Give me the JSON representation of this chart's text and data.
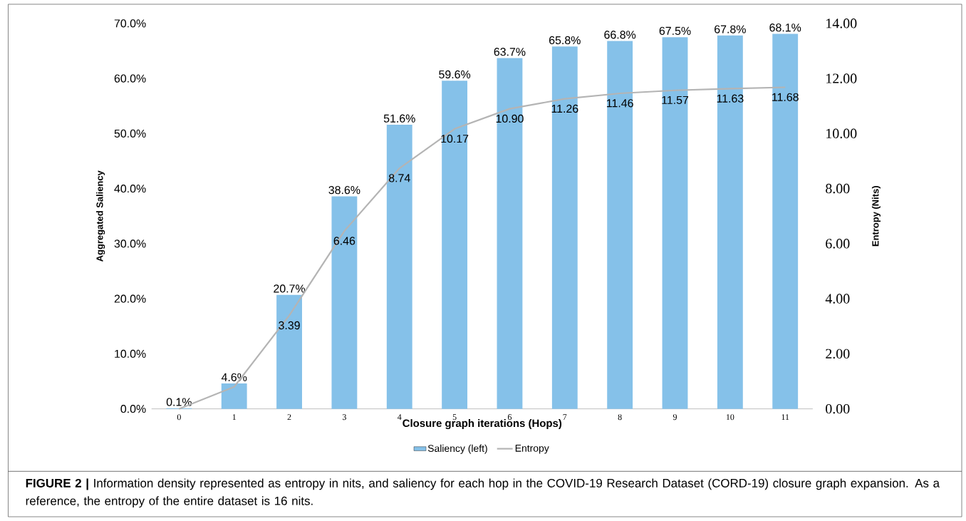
{
  "chart_data": {
    "type": "bar",
    "categories": [
      "0",
      "1",
      "2",
      "3",
      "4",
      "5",
      "6",
      "7",
      "8",
      "9",
      "10",
      "11"
    ],
    "series": [
      {
        "name": "Saliency (left)",
        "color": "#85c1e9",
        "values": [
          0.1,
          4.6,
          20.7,
          38.6,
          51.6,
          59.6,
          63.7,
          65.8,
          66.8,
          67.5,
          67.8,
          68.1
        ],
        "value_labels": [
          "0.1%",
          "4.6%",
          "20.7%",
          "38.6%",
          "51.6%",
          "59.6%",
          "63.7%",
          "65.8%",
          "66.8%",
          "67.5%",
          "67.8%",
          "68.1%"
        ]
      },
      {
        "name": "Entropy",
        "type": "line",
        "axis": "y2",
        "color": "#b4b4b4",
        "values": [
          0,
          0.8,
          3.39,
          6.46,
          8.74,
          10.17,
          10.9,
          11.26,
          11.46,
          11.57,
          11.63,
          11.68
        ],
        "value_labels": [
          null,
          null,
          "3.39",
          "6.46",
          "8.74",
          "10.17",
          "10.90",
          "11.26",
          "11.46",
          "11.57",
          "11.63",
          "11.68"
        ]
      }
    ],
    "xlabel": "Closure graph iterations (Hops)",
    "ylabel": "Aggregated Saliency",
    "y2label": "Entropy (Nits)",
    "ylim": [
      0,
      70
    ],
    "yticks": [
      {
        "value": 0,
        "label": "0.0%"
      },
      {
        "value": 10,
        "label": "10.0%"
      },
      {
        "value": 20,
        "label": "20.0%"
      },
      {
        "value": 30,
        "label": "30.0%"
      },
      {
        "value": 40,
        "label": "40.0%"
      },
      {
        "value": 50,
        "label": "50.0%"
      },
      {
        "value": 60,
        "label": "60.0%"
      },
      {
        "value": 70,
        "label": "70.0%"
      }
    ],
    "y2lim": [
      0,
      14
    ],
    "y2ticks": [
      {
        "value": 0,
        "label": "0.00"
      },
      {
        "value": 2,
        "label": "2.00"
      },
      {
        "value": 4,
        "label": "4.00"
      },
      {
        "value": 6,
        "label": "6.00"
      },
      {
        "value": 8,
        "label": "8.00"
      },
      {
        "value": 10,
        "label": "10.00"
      },
      {
        "value": 12,
        "label": "12.00"
      },
      {
        "value": 14,
        "label": "14.00"
      }
    ],
    "legend": "bottom",
    "annotations": [
      "**FIGURE 2 |** Information density represented as entropy in nits, and saliency for each hop in the COVID-19 Research Dataset (CORD-19) closure graph expansion. As a reference, the entropy of the entire dataset is 16 nits."
    ]
  }
}
